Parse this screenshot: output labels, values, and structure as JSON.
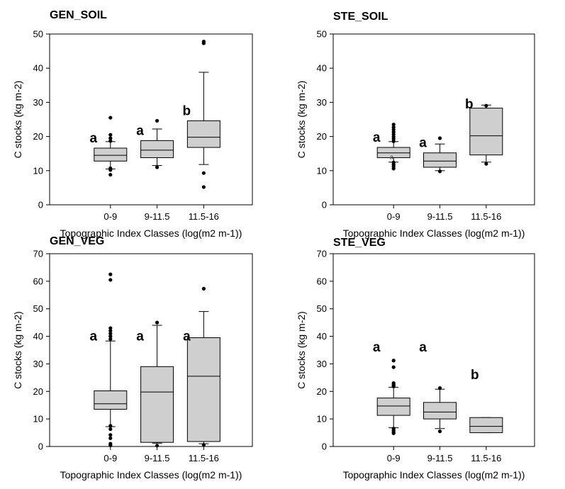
{
  "chart_data": [
    {
      "type": "box",
      "title": "GEN_SOIL",
      "xlabel": "Topographic Index Classes (log(m2 m-1))",
      "ylabel": "C stocks (kg m-2)",
      "ylim": [
        0,
        50
      ],
      "yticks": [
        0,
        10,
        20,
        30,
        40,
        50
      ],
      "categories": [
        "0-9",
        "9-11.5",
        "11.5-16"
      ],
      "boxes": [
        {
          "whisker_low": 10.5,
          "q1": 12.8,
          "median": 14.5,
          "q3": 16.6,
          "whisker_high": 18.5,
          "outliers": [
            25.5,
            20.5,
            19.5,
            18.7,
            10.7,
            10.2,
            8.8
          ]
        },
        {
          "whisker_low": 11.5,
          "q1": 13.8,
          "median": 16.0,
          "q3": 18.8,
          "whisker_high": 22.2,
          "outliers": [
            24.6,
            11.0
          ]
        },
        {
          "whisker_low": 11.8,
          "q1": 16.8,
          "median": 19.8,
          "q3": 24.6,
          "whisker_high": 38.8,
          "outliers": [
            47.8,
            47.3,
            9.3,
            5.2
          ]
        }
      ],
      "significance": [
        "a",
        "a",
        "b"
      ]
    },
    {
      "type": "box",
      "title": "STE_SOIL",
      "xlabel": "Topographic Index Classes (log(m2 m-1))",
      "ylabel": "C stocks (kg m-2)",
      "ylim": [
        0,
        50
      ],
      "yticks": [
        0,
        10,
        20,
        30,
        40,
        50
      ],
      "categories": [
        "0-9",
        "9-11.5",
        "11.5-16"
      ],
      "boxes": [
        {
          "whisker_low": 12.5,
          "q1": 13.8,
          "median": 15.2,
          "q3": 16.8,
          "whisker_high": 18.5,
          "outliers": [
            23.5,
            22.7,
            22.0,
            21.3,
            20.6,
            19.9,
            19.3,
            18.6,
            12.4,
            11.8,
            11.2,
            10.6
          ],
          "inner_label": "a"
        },
        {
          "whisker_low": 10.0,
          "q1": 11.0,
          "median": 12.8,
          "q3": 15.2,
          "whisker_high": 17.8,
          "outliers": [
            19.5,
            9.8
          ]
        },
        {
          "whisker_low": 12.5,
          "q1": 14.6,
          "median": 20.2,
          "q3": 28.3,
          "whisker_high": 29.2,
          "outliers": [
            29.0,
            12.0
          ]
        }
      ],
      "significance": [
        "a",
        "a",
        "b"
      ]
    },
    {
      "type": "box",
      "title": "GEN_VEG",
      "xlabel": "Topographic Index Classes (log(m2 m-1))",
      "ylabel": "C stocks (kg m-2)",
      "ylim": [
        0,
        70
      ],
      "yticks": [
        0,
        10,
        20,
        30,
        40,
        50,
        60,
        70
      ],
      "categories": [
        "0-9",
        "9-11.5",
        "11.5-16"
      ],
      "boxes": [
        {
          "whisker_low": 7.2,
          "q1": 13.5,
          "median": 15.5,
          "q3": 20.2,
          "whisker_high": 38.3,
          "outliers": [
            62.5,
            60.5,
            43.0,
            42.0,
            41.0,
            40.0,
            39.0,
            7.5,
            6.3,
            4.2,
            3.0,
            1.0,
            0.4
          ]
        },
        {
          "whisker_low": 1.2,
          "q1": 1.5,
          "median": 19.8,
          "q3": 29.0,
          "whisker_high": 44.0,
          "outliers": [
            45.0,
            0.3
          ]
        },
        {
          "whisker_low": 1.0,
          "q1": 1.8,
          "median": 25.5,
          "q3": 39.5,
          "whisker_high": 49.0,
          "outliers": [
            57.3,
            0.6
          ]
        }
      ],
      "significance": [
        "a",
        "a",
        "a"
      ]
    },
    {
      "type": "box",
      "title": "STE_VEG",
      "xlabel": "Topographic Index Classes (log(m2 m-1))",
      "ylabel": "C stocks (kg m-2)",
      "ylim": [
        0,
        70
      ],
      "yticks": [
        0,
        10,
        20,
        30,
        40,
        50,
        60,
        70
      ],
      "categories": [
        "0-9",
        "9-11.5",
        "11.5-16"
      ],
      "boxes": [
        {
          "whisker_low": 6.8,
          "q1": 11.3,
          "median": 14.7,
          "q3": 17.6,
          "whisker_high": 21.5,
          "outliers": [
            31.2,
            28.8,
            23.0,
            22.5,
            22.0,
            21.8,
            6.5,
            5.8,
            5.2,
            4.8
          ]
        },
        {
          "whisker_low": 6.5,
          "q1": 10.0,
          "median": 12.5,
          "q3": 16.0,
          "whisker_high": 20.8,
          "outliers": [
            21.2,
            5.5
          ]
        },
        {
          "whisker_low": 5.0,
          "q1": 5.0,
          "median": 7.3,
          "q3": 10.5,
          "whisker_high": 10.5,
          "outliers": []
        }
      ],
      "significance": [
        "a",
        "a",
        "b"
      ]
    }
  ]
}
